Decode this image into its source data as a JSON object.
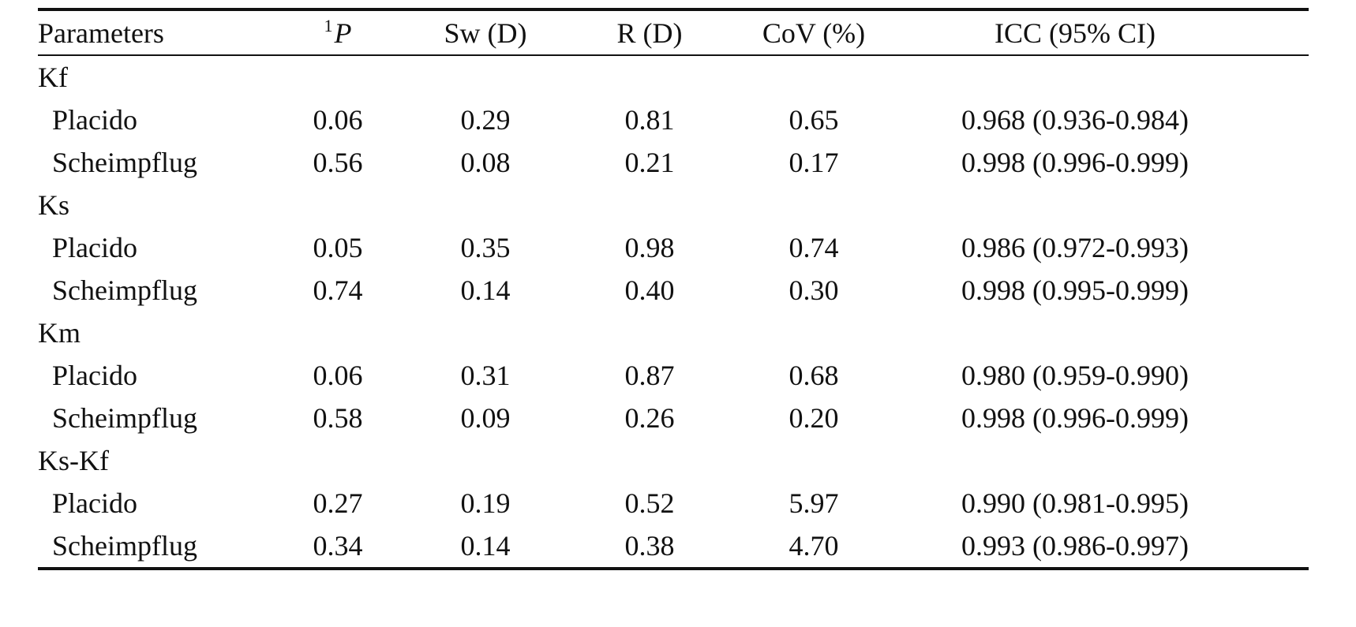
{
  "table": {
    "headers": {
      "parameters": "Parameters",
      "p_sup": "1",
      "p": "P",
      "sw": "Sw (D)",
      "r": "R (D)",
      "cov": "CoV (%)",
      "icc": "ICC (95% CI)"
    },
    "groups": [
      {
        "name": "Kf",
        "rows": [
          {
            "method": "Placido",
            "p": "0.06",
            "sw": "0.29",
            "r": "0.81",
            "cov": "0.65",
            "icc": "0.968 (0.936-0.984)"
          },
          {
            "method": "Scheimpflug",
            "p": "0.56",
            "sw": "0.08",
            "r": "0.21",
            "cov": "0.17",
            "icc": "0.998 (0.996-0.999)"
          }
        ]
      },
      {
        "name": "Ks",
        "rows": [
          {
            "method": "Placido",
            "p": "0.05",
            "sw": "0.35",
            "r": "0.98",
            "cov": "0.74",
            "icc": "0.986 (0.972-0.993)"
          },
          {
            "method": "Scheimpflug",
            "p": "0.74",
            "sw": "0.14",
            "r": "0.40",
            "cov": "0.30",
            "icc": "0.998 (0.995-0.999)"
          }
        ]
      },
      {
        "name": "Km",
        "rows": [
          {
            "method": "Placido",
            "p": "0.06",
            "sw": "0.31",
            "r": "0.87",
            "cov": "0.68",
            "icc": "0.980 (0.959-0.990)"
          },
          {
            "method": "Scheimpflug",
            "p": "0.58",
            "sw": "0.09",
            "r": "0.26",
            "cov": "0.20",
            "icc": "0.998 (0.996-0.999)"
          }
        ]
      },
      {
        "name": "Ks-Kf",
        "rows": [
          {
            "method": "Placido",
            "p": "0.27",
            "sw": "0.19",
            "r": "0.52",
            "cov": "5.97",
            "icc": "0.990 (0.981-0.995)"
          },
          {
            "method": "Scheimpflug",
            "p": "0.34",
            "sw": "0.14",
            "r": "0.38",
            "cov": "4.70",
            "icc": "0.993 (0.986-0.997)"
          }
        ]
      }
    ]
  }
}
